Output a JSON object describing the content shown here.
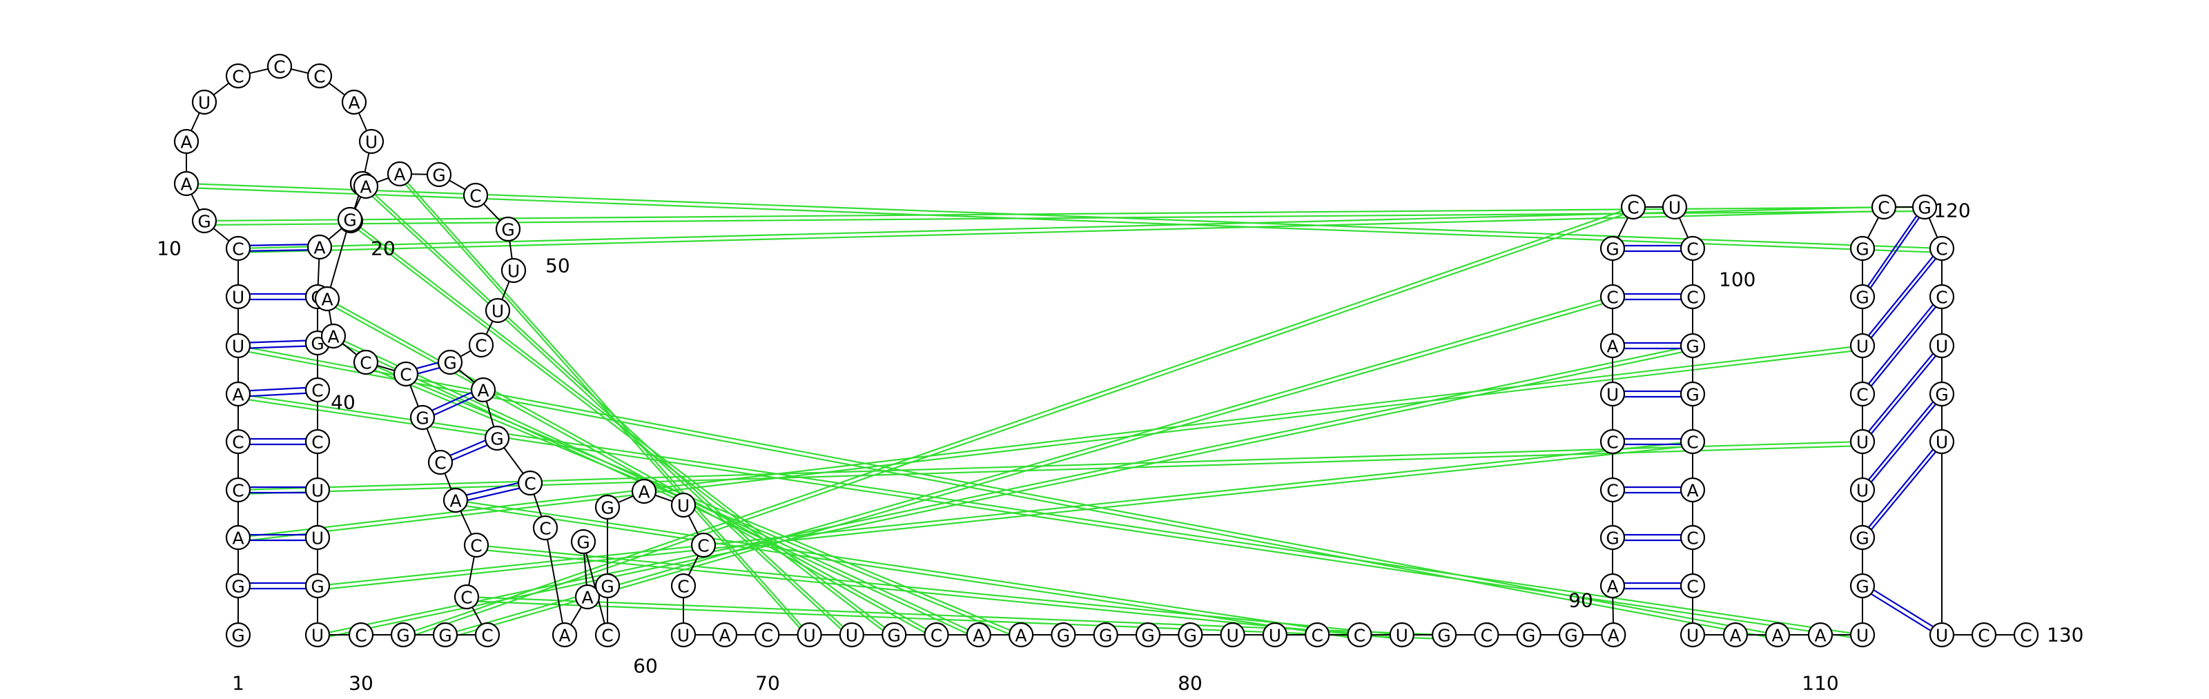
{
  "structure": {
    "sequence": "GGACCAUUCGAAUCCCAUUGAGGCCUUGUCGGCCCACGCCAAGAAGCGUUCGAGCCAAGCGGAUCCUACUUGCAAGGGGUUCCUGCGGAAGCCUACGCUCCGGCACCUAAAUGGUUCUGGCGCCUGUUCCC"
  },
  "position_labels": [
    "1",
    "10",
    "20",
    "30",
    "40",
    "50",
    "60",
    "70",
    "80",
    "90",
    "100",
    "110",
    "120",
    "130"
  ],
  "colors": {
    "canonical_pair": "#0000cc",
    "gu_pair": "#0000cc",
    "noncanonical_pair": "#00dd00",
    "pseudoknot": "#33dd33",
    "backbone": "#000000"
  },
  "pseudoknot_pairs": [
    [
      3,
      118
    ],
    [
      4,
      116
    ],
    [
      6,
      112
    ],
    [
      7,
      110
    ],
    [
      9,
      121
    ],
    [
      10,
      122
    ],
    [
      11,
      123
    ],
    [
      28,
      104
    ],
    [
      29,
      102
    ],
    [
      31,
      98
    ],
    [
      32,
      96
    ],
    [
      34,
      85
    ],
    [
      35,
      84
    ],
    [
      36,
      83
    ],
    [
      40,
      75
    ],
    [
      41,
      74
    ],
    [
      42,
      73
    ],
    [
      43,
      72
    ],
    [
      44,
      71
    ],
    [
      45,
      70
    ]
  ]
}
